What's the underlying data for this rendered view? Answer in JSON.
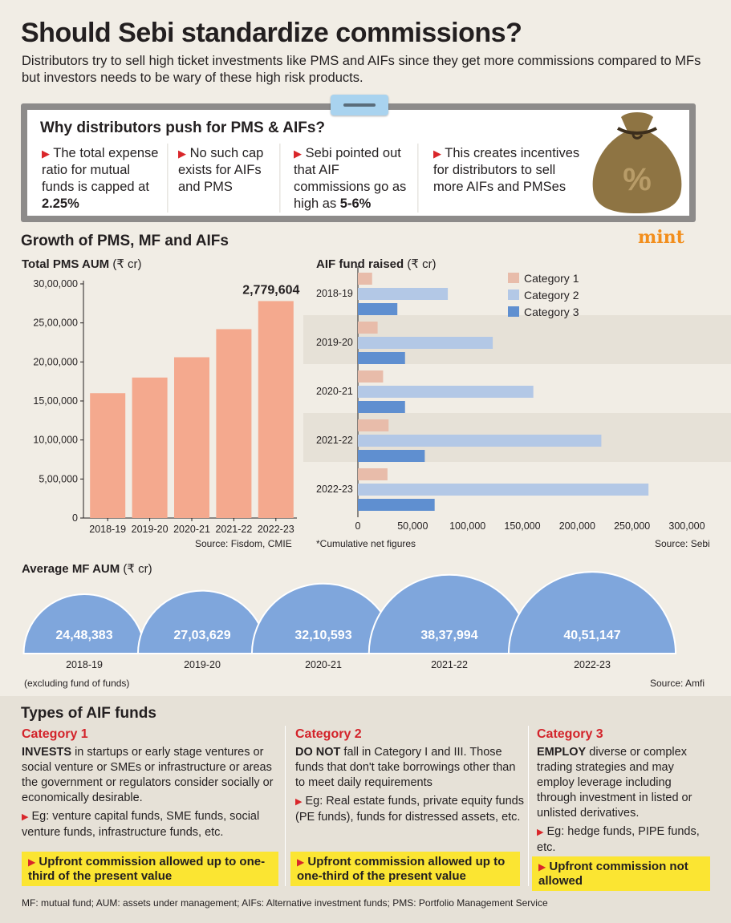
{
  "title": "Should Sebi standardize commissions?",
  "subtitle": "Distributors try to sell high ticket investments like PMS and AIFs since they get more commissions compared to MFs but investors needs to be wary of these high risk products.",
  "why": {
    "heading": "Why distributors push for PMS & AIFs?",
    "points": [
      {
        "text": "The total expense ratio for mutual funds is capped at ",
        "bold": "2.25%"
      },
      {
        "text": "No such cap exists for AIFs and PMS",
        "bold": ""
      },
      {
        "text": "Sebi pointed out that AIF commissions go as high as ",
        "bold": "5-6%"
      },
      {
        "text": "This creates incentives for distributors to sell more AIFs and PMSes",
        "bold": ""
      }
    ],
    "bag_symbol": "%",
    "bag_icon": "money-bag-icon"
  },
  "logo": "mint",
  "growth_heading": "Growth of PMS, MF and AIFs",
  "colors": {
    "pms_bar": "#f4a98e",
    "cat1": "#e8bcaa",
    "cat2": "#b3c8e6",
    "cat3": "#5f8fd0",
    "mf_dome": "#7fa6dc",
    "accent_red": "#d3232a",
    "highlight": "#fbe532"
  },
  "chart_data": [
    {
      "type": "bar",
      "title": "Total PMS AUM",
      "unit": "(₹ cr)",
      "categories": [
        "2018-19",
        "2019-20",
        "2020-21",
        "2021-22",
        "2022-23"
      ],
      "values": [
        1600000,
        1800000,
        2060000,
        2420000,
        2779604
      ],
      "value_labels": [
        "",
        "",
        "",
        "",
        "2,779,604"
      ],
      "ylim": [
        0,
        3000000
      ],
      "yticks": [
        0,
        500000,
        1000000,
        1500000,
        2000000,
        2500000,
        3000000
      ],
      "ytick_labels": [
        "0",
        "5,00,000",
        "10,00,000",
        "15,00,000",
        "20,00,000",
        "25,00,000",
        "30,00,000"
      ],
      "source": "Source: Fisdom, CMIE"
    },
    {
      "type": "bar",
      "orientation": "horizontal",
      "title": "AIF fund raised",
      "unit": "(₹ cr)",
      "categories": [
        "2018-19",
        "2019-20",
        "2020-21",
        "2021-22",
        "2022-23"
      ],
      "series": [
        {
          "name": "Category 1",
          "values": [
            13000,
            18000,
            23000,
            28000,
            27000
          ]
        },
        {
          "name": "Category 2",
          "values": [
            82000,
            123000,
            160000,
            222000,
            265000
          ]
        },
        {
          "name": "Category 3",
          "values": [
            36000,
            43000,
            43000,
            61000,
            70000
          ]
        }
      ],
      "xlim": [
        0,
        300000
      ],
      "xticks": [
        0,
        50000,
        100000,
        150000,
        200000,
        250000,
        300000
      ],
      "xtick_labels": [
        "0",
        "50,000",
        "100,000",
        "150,000",
        "200,000",
        "250,000",
        "300,000"
      ],
      "legend": "top-right",
      "note": "*Cumulative net figures",
      "source": "Source: Sebi"
    },
    {
      "type": "area",
      "title": "Average MF AUM",
      "unit": "(₹ cr)",
      "categories": [
        "2018-19",
        "2019-20",
        "2020-21",
        "2021-22",
        "2022-23"
      ],
      "values": [
        2448383,
        2703629,
        3210593,
        3837994,
        4051147
      ],
      "value_labels": [
        "24,48,383",
        "27,03,629",
        "32,10,593",
        "38,37,994",
        "40,51,147"
      ],
      "note": "(excluding fund of funds)",
      "source": "Source: Amfi"
    }
  ],
  "types": {
    "heading": "Types of AIF funds",
    "categories": [
      {
        "title": "Category 1",
        "lead": "INVESTS",
        "desc": " in startups or early stage ventures or social venture or SMEs or infrastructure or areas the government or regulators consider socially or economically desirable.",
        "example": "Eg: venture capital funds, SME funds, social venture funds, infrastructure funds, etc.",
        "commission": "Upfront commission allowed up to one-third of the present value"
      },
      {
        "title": "Category 2",
        "lead": "DO NOT",
        "desc": " fall in Category I and III. Those funds that don't take borrowings other than to meet daily requirements",
        "example": "Eg: Real estate funds, private equity funds (PE funds), funds for distressed assets, etc.",
        "commission": "Upfront commission allowed up to one-third of the present value"
      },
      {
        "title": "Category 3",
        "lead": "EMPLOY",
        "desc": " diverse or complex trading strategies and may employ leverage including through investment in listed or unlisted derivatives.",
        "example": "Eg: hedge funds, PIPE funds, etc.",
        "commission": "Upfront commission not allowed"
      }
    ]
  },
  "footnote": "MF: mutual fund; AUM: assets under management; AIFs: Alternative investment funds; PMS: Portfolio Management Service"
}
